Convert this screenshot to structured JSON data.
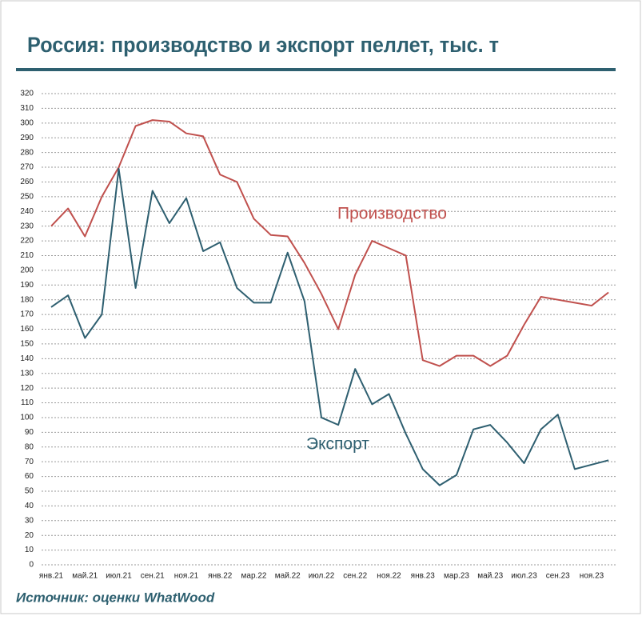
{
  "chart_data": {
    "type": "line",
    "title": "Россия: производство и экспорт пеллет, тыс. т",
    "source": "Источник: оценки WhatWood",
    "categories": [
      "янв.21",
      null,
      "май.21",
      null,
      "июл.21",
      null,
      "сен.21",
      null,
      "ноя.21",
      null,
      "янв.22",
      null,
      "мар.22",
      null,
      "май.22",
      null,
      "июл.22",
      null,
      "сен.22",
      null,
      "ноя.22",
      null,
      "янв.23",
      null,
      "мар.23",
      null,
      "май.23",
      null,
      "июл.23",
      null,
      "сен.23",
      null,
      "ноя.23",
      null
    ],
    "series": [
      {
        "name": "Производство",
        "color": "#c0504d",
        "values": [
          230,
          242,
          223,
          250,
          270,
          298,
          302,
          301,
          293,
          291,
          265,
          260,
          235,
          224,
          223,
          205,
          184,
          160,
          197,
          220,
          215,
          210,
          139,
          135,
          142,
          142,
          135,
          142,
          163,
          182,
          180,
          178,
          176,
          185
        ]
      },
      {
        "name": "Экспорт",
        "color": "#2e5f70",
        "values": [
          175,
          183,
          154,
          170,
          269,
          188,
          254,
          232,
          249,
          213,
          219,
          188,
          178,
          178,
          212,
          179,
          100,
          95,
          133,
          109,
          116,
          89,
          65,
          54,
          61,
          92,
          95,
          83,
          69,
          92,
          102,
          65,
          68,
          71
        ]
      }
    ],
    "ylim": [
      0,
      320
    ],
    "yticks": [
      0,
      10,
      20,
      30,
      40,
      50,
      60,
      70,
      80,
      90,
      100,
      110,
      120,
      130,
      140,
      150,
      160,
      170,
      180,
      190,
      200,
      210,
      220,
      230,
      240,
      250,
      260,
      270,
      280,
      290,
      300,
      310,
      320
    ],
    "grid": true
  }
}
